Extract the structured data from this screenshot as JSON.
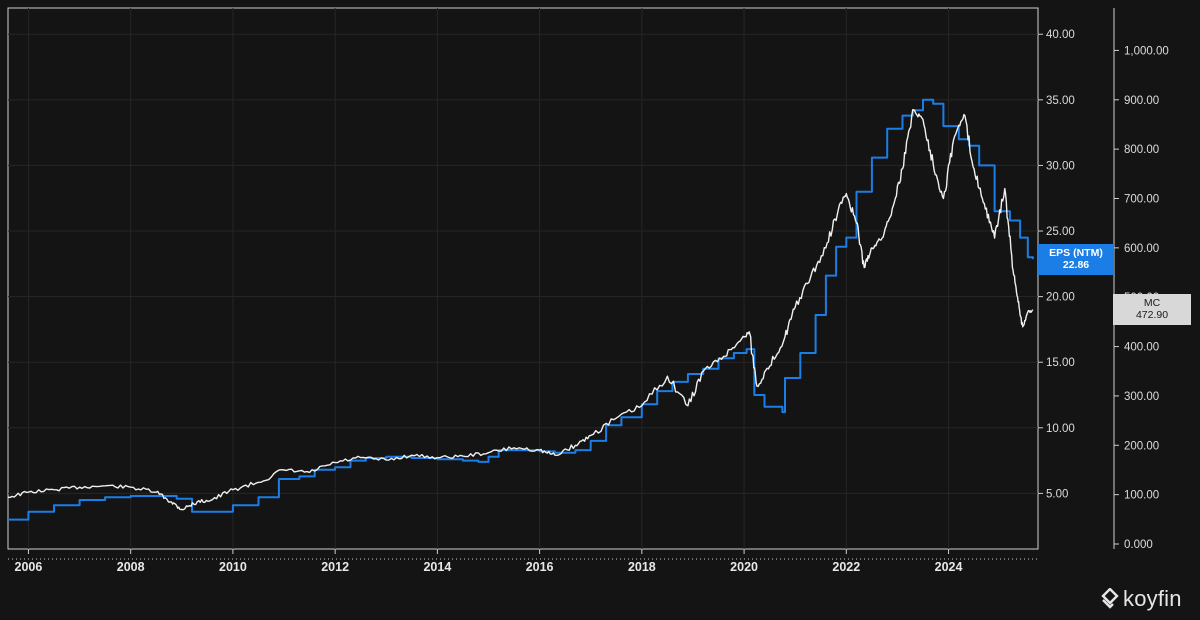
{
  "chart_data": {
    "type": "line",
    "x_range": [
      2005.6,
      2025.75
    ],
    "x_ticks": [
      "2006",
      "2008",
      "2010",
      "2012",
      "2014",
      "2016",
      "2018",
      "2020",
      "2022",
      "2024"
    ],
    "y_left": {
      "range": [
        0,
        42
      ],
      "ticks": [
        "5.00",
        "10.00",
        "15.00",
        "20.00",
        "25.00",
        "30.00",
        "35.00",
        "40.00"
      ]
    },
    "y_right": {
      "range": [
        0,
        1090
      ],
      "ticks": [
        "0.000",
        "100.00",
        "200.00",
        "300.00",
        "400.00",
        "500.00",
        "600.00",
        "700.00",
        "800.00",
        "900.00",
        "1,000.00"
      ]
    },
    "grid": true,
    "series": [
      {
        "name": "EPS (NTM)",
        "axis": "left",
        "color": "#1a7ee6",
        "style": "step",
        "last_value_label": "22.86",
        "points": [
          [
            2005.6,
            3.0
          ],
          [
            2006.0,
            3.6
          ],
          [
            2006.5,
            4.1
          ],
          [
            2007.0,
            4.5
          ],
          [
            2007.5,
            4.7
          ],
          [
            2008.0,
            4.8
          ],
          [
            2008.5,
            4.8
          ],
          [
            2008.9,
            4.6
          ],
          [
            2009.2,
            3.6
          ],
          [
            2009.6,
            3.6
          ],
          [
            2010.0,
            4.1
          ],
          [
            2010.5,
            4.7
          ],
          [
            2010.9,
            6.1
          ],
          [
            2011.3,
            6.3
          ],
          [
            2011.6,
            6.8
          ],
          [
            2012.0,
            7.0
          ],
          [
            2012.3,
            7.5
          ],
          [
            2012.6,
            7.7
          ],
          [
            2013.0,
            7.8
          ],
          [
            2013.5,
            7.7
          ],
          [
            2014.0,
            7.6
          ],
          [
            2014.5,
            7.5
          ],
          [
            2014.8,
            7.4
          ],
          [
            2015.0,
            7.8
          ],
          [
            2015.2,
            8.3
          ],
          [
            2015.8,
            8.3
          ],
          [
            2016.0,
            8.2
          ],
          [
            2016.3,
            8.1
          ],
          [
            2016.7,
            8.3
          ],
          [
            2017.0,
            9.0
          ],
          [
            2017.3,
            10.2
          ],
          [
            2017.6,
            10.8
          ],
          [
            2018.0,
            11.8
          ],
          [
            2018.3,
            12.8
          ],
          [
            2018.6,
            13.5
          ],
          [
            2018.9,
            14.1
          ],
          [
            2019.2,
            14.5
          ],
          [
            2019.5,
            15.3
          ],
          [
            2019.8,
            15.7
          ],
          [
            2020.05,
            16.0
          ],
          [
            2020.2,
            12.5
          ],
          [
            2020.4,
            11.6
          ],
          [
            2020.75,
            11.2
          ],
          [
            2020.8,
            13.8
          ],
          [
            2021.1,
            15.7
          ],
          [
            2021.4,
            18.6
          ],
          [
            2021.6,
            21.6
          ],
          [
            2021.8,
            23.8
          ],
          [
            2022.0,
            24.5
          ],
          [
            2022.2,
            28.0
          ],
          [
            2022.5,
            30.6
          ],
          [
            2022.8,
            32.8
          ],
          [
            2023.1,
            33.8
          ],
          [
            2023.3,
            34.2
          ],
          [
            2023.5,
            35.0
          ],
          [
            2023.7,
            34.7
          ],
          [
            2023.9,
            33.0
          ],
          [
            2024.2,
            32.0
          ],
          [
            2024.4,
            31.5
          ],
          [
            2024.6,
            30.0
          ],
          [
            2024.9,
            26.5
          ],
          [
            2025.2,
            25.8
          ],
          [
            2025.4,
            24.5
          ],
          [
            2025.55,
            23.0
          ],
          [
            2025.65,
            22.86
          ]
        ]
      },
      {
        "name": "MC",
        "axis": "right",
        "color": "#f0f0f0",
        "style": "line",
        "last_value_label": "472.90",
        "points": [
          [
            2005.6,
            95
          ],
          [
            2006.0,
            105
          ],
          [
            2006.5,
            110
          ],
          [
            2007.0,
            115
          ],
          [
            2007.5,
            118
          ],
          [
            2008.0,
            115
          ],
          [
            2008.5,
            105
          ],
          [
            2008.8,
            85
          ],
          [
            2009.0,
            70
          ],
          [
            2009.3,
            85
          ],
          [
            2009.6,
            90
          ],
          [
            2010.0,
            110
          ],
          [
            2010.5,
            125
          ],
          [
            2011.0,
            150
          ],
          [
            2011.5,
            145
          ],
          [
            2012.0,
            165
          ],
          [
            2012.5,
            175
          ],
          [
            2013.0,
            170
          ],
          [
            2013.5,
            180
          ],
          [
            2014.0,
            175
          ],
          [
            2014.5,
            178
          ],
          [
            2015.0,
            185
          ],
          [
            2015.5,
            195
          ],
          [
            2016.0,
            190
          ],
          [
            2016.3,
            180
          ],
          [
            2016.7,
            200
          ],
          [
            2017.0,
            220
          ],
          [
            2017.5,
            255
          ],
          [
            2018.0,
            280
          ],
          [
            2018.5,
            340
          ],
          [
            2018.9,
            280
          ],
          [
            2019.2,
            350
          ],
          [
            2019.6,
            380
          ],
          [
            2019.9,
            410
          ],
          [
            2020.1,
            430
          ],
          [
            2020.25,
            320
          ],
          [
            2020.5,
            360
          ],
          [
            2020.8,
            420
          ],
          [
            2021.0,
            480
          ],
          [
            2021.3,
            540
          ],
          [
            2021.6,
            600
          ],
          [
            2021.85,
            680
          ],
          [
            2022.0,
            710
          ],
          [
            2022.2,
            650
          ],
          [
            2022.35,
            560
          ],
          [
            2022.5,
            600
          ],
          [
            2022.7,
            620
          ],
          [
            2022.9,
            680
          ],
          [
            2023.1,
            760
          ],
          [
            2023.3,
            880
          ],
          [
            2023.5,
            860
          ],
          [
            2023.7,
            770
          ],
          [
            2023.9,
            700
          ],
          [
            2024.1,
            820
          ],
          [
            2024.3,
            870
          ],
          [
            2024.5,
            760
          ],
          [
            2024.7,
            690
          ],
          [
            2024.9,
            620
          ],
          [
            2025.1,
            720
          ],
          [
            2025.25,
            560
          ],
          [
            2025.35,
            500
          ],
          [
            2025.45,
            440
          ],
          [
            2025.55,
            470
          ],
          [
            2025.65,
            472.9
          ]
        ]
      }
    ]
  },
  "badges": {
    "eps_name": "EPS (NTM)",
    "eps_value": "22.86",
    "mc_name": "MC",
    "mc_value": "472.90"
  },
  "brand": {
    "name": "koyfin"
  }
}
